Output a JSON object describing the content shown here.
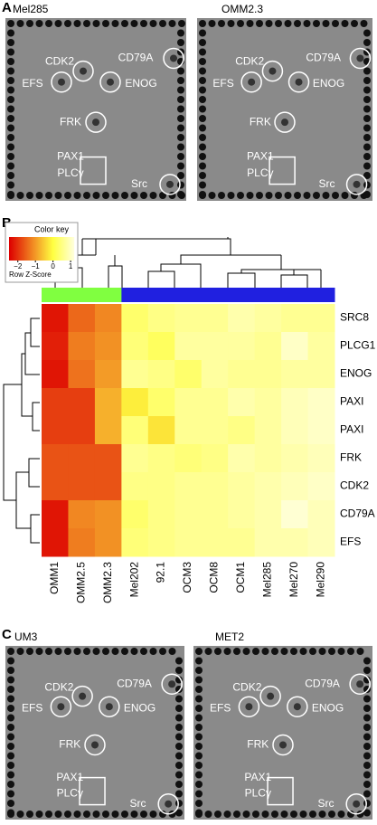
{
  "panel_a": {
    "letter": "A",
    "blots": [
      {
        "title": "Mel285",
        "labels": [
          "CDK2",
          "CD79A",
          "EFS",
          "ENOG",
          "FRK",
          "PAX1",
          "PLCγ",
          "Src"
        ]
      },
      {
        "title": "OMM2.3",
        "labels": [
          "CDK2",
          "CD79A",
          "EFS",
          "ENOG",
          "FRK",
          "PAX1",
          "PLCγ",
          "Src"
        ]
      }
    ]
  },
  "chart_data": {
    "type": "heatmap",
    "panel_letter": "B",
    "color_key_title": "Color key",
    "color_key_label": "Row Z-Score",
    "zlim": [
      -2.5,
      1.2
    ],
    "colors": [
      "#dd0000",
      "#f08020",
      "#ffff40",
      "#ffffe0"
    ],
    "color_key_ticks": [
      {
        "value": -2,
        "label": "−2"
      },
      {
        "value": -1,
        "label": "−1"
      },
      0,
      1
    ],
    "columns": [
      "OMM1",
      "OMM2.5",
      "OMM2.3",
      "Mel202",
      "92.1",
      "OCM3",
      "OCM8",
      "OCM1",
      "Mel285",
      "Mel270",
      "Mel290"
    ],
    "column_group_colors": [
      "#80ff40",
      "#80ff40",
      "#80ff40",
      "#2020e0",
      "#2020e0",
      "#2020e0",
      "#2020e0",
      "#2020e0",
      "#2020e0",
      "#2020e0",
      "#2020e0"
    ],
    "rows": [
      "SRC8",
      "PLCG1",
      "ENOG",
      "PAXI",
      "PAXI",
      "FRK",
      "CDK2",
      "CD79A",
      "EFS"
    ],
    "values": [
      [
        -2.3,
        -1.5,
        -1.2,
        0.3,
        0.5,
        0.6,
        0.6,
        0.8,
        0.7,
        0.6,
        0.6
      ],
      [
        -2.2,
        -1.3,
        -1.1,
        0.4,
        0.2,
        0.7,
        0.7,
        0.7,
        0.6,
        1.0,
        0.7
      ],
      [
        -2.3,
        -1.4,
        -1.0,
        0.6,
        0.5,
        0.3,
        0.7,
        0.6,
        0.6,
        0.7,
        0.7
      ],
      [
        -1.9,
        -1.9,
        -0.8,
        -0.2,
        0.3,
        0.6,
        0.6,
        0.8,
        0.7,
        0.9,
        1.0
      ],
      [
        -1.9,
        -1.9,
        -0.8,
        0.4,
        -0.3,
        0.6,
        0.6,
        0.5,
        0.7,
        0.9,
        1.0
      ],
      [
        -1.7,
        -1.7,
        -1.7,
        0.6,
        0.5,
        0.4,
        0.5,
        0.8,
        0.7,
        0.8,
        0.9
      ],
      [
        -1.7,
        -1.7,
        -1.7,
        0.5,
        0.5,
        0.6,
        0.6,
        0.7,
        0.8,
        0.9,
        1.0
      ],
      [
        -2.3,
        -1.2,
        -1.1,
        0.3,
        0.5,
        0.6,
        0.6,
        0.7,
        0.8,
        1.1,
        0.9
      ],
      [
        -2.3,
        -1.3,
        -1.1,
        0.4,
        0.5,
        0.6,
        0.6,
        0.6,
        0.8,
        0.8,
        0.9
      ]
    ]
  },
  "panel_c": {
    "letter": "C",
    "blots": [
      {
        "title": "UM3",
        "labels": [
          "CDK2",
          "CD79A",
          "EFS",
          "ENOG",
          "FRK",
          "PAX1",
          "PLCγ",
          "Src"
        ]
      },
      {
        "title": "MET2",
        "labels": [
          "CDK2",
          "CD79A",
          "EFS",
          "ENOG",
          "FRK",
          "PAX1",
          "PLCγ",
          "Src"
        ]
      }
    ]
  }
}
